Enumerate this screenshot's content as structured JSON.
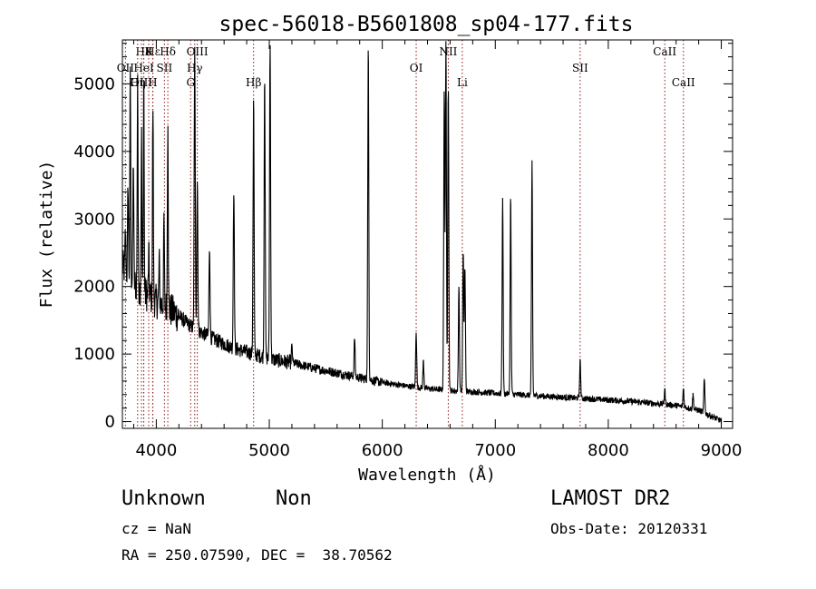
{
  "chart_data": {
    "type": "line",
    "title": "spec-56018-B5601808_sp04-177.fits",
    "xlabel": "Wavelength (Å)",
    "ylabel": "Flux (relative)",
    "xlim": [
      3700,
      9100
    ],
    "ylim": [
      -100,
      5650
    ],
    "xticks": [
      4000,
      5000,
      6000,
      7000,
      8000,
      9000
    ],
    "yticks": [
      0,
      1000,
      2000,
      3000,
      4000,
      5000
    ],
    "grid": false,
    "continuum": {
      "x": [
        3700,
        3800,
        3900,
        4000,
        4100,
        4200,
        4300,
        4400,
        4500,
        4600,
        4700,
        4800,
        4900,
        5000,
        5200,
        5400,
        5600,
        5800,
        6000,
        6200,
        6400,
        6600,
        6800,
        7000,
        7200,
        7400,
        7600,
        7800,
        8000,
        8200,
        8400,
        8600,
        8800,
        9000
      ],
      "y": [
        2300,
        2050,
        1900,
        1780,
        1680,
        1560,
        1420,
        1320,
        1230,
        1150,
        1080,
        1030,
        980,
        930,
        870,
        790,
        720,
        650,
        580,
        530,
        490,
        460,
        440,
        420,
        400,
        380,
        360,
        340,
        320,
        300,
        270,
        240,
        170,
        10
      ]
    },
    "emission_lines": [
      {
        "x": 3727,
        "y": 2800
      },
      {
        "x": 3750,
        "y": 3600
      },
      {
        "x": 3770,
        "y": 5300
      },
      {
        "x": 3797,
        "y": 3900
      },
      {
        "x": 3835,
        "y": 5200
      },
      {
        "x": 3869,
        "y": 4300
      },
      {
        "x": 3889,
        "y": 5200
      },
      {
        "x": 3933,
        "y": 2500
      },
      {
        "x": 3970,
        "y": 4700
      },
      {
        "x": 4026,
        "y": 2400
      },
      {
        "x": 4068,
        "y": 3000
      },
      {
        "x": 4102,
        "y": 4600
      },
      {
        "x": 4340,
        "y": 5500
      },
      {
        "x": 4363,
        "y": 3600
      },
      {
        "x": 4471,
        "y": 2600
      },
      {
        "x": 4686,
        "y": 3500
      },
      {
        "x": 4861,
        "y": 4800
      },
      {
        "x": 4959,
        "y": 5200
      },
      {
        "x": 5007,
        "y": 5600
      },
      {
        "x": 5200,
        "y": 1100
      },
      {
        "x": 5755,
        "y": 1250
      },
      {
        "x": 5876,
        "y": 5600
      },
      {
        "x": 6300,
        "y": 1350
      },
      {
        "x": 6364,
        "y": 900
      },
      {
        "x": 6548,
        "y": 4900
      },
      {
        "x": 6563,
        "y": 5600
      },
      {
        "x": 6584,
        "y": 5000
      },
      {
        "x": 6678,
        "y": 2050
      },
      {
        "x": 6716,
        "y": 2500
      },
      {
        "x": 6731,
        "y": 2300
      },
      {
        "x": 7065,
        "y": 3350
      },
      {
        "x": 7136,
        "y": 3350
      },
      {
        "x": 7325,
        "y": 3850
      },
      {
        "x": 7751,
        "y": 900
      },
      {
        "x": 8500,
        "y": 480
      },
      {
        "x": 8665,
        "y": 500
      },
      {
        "x": 8750,
        "y": 400
      },
      {
        "x": 8850,
        "y": 620
      }
    ],
    "line_markers": [
      {
        "label": "Hε",
        "x": 3970,
        "row": 1
      },
      {
        "label": "H8",
        "x": 3889,
        "row": 1
      },
      {
        "label": "K",
        "x": 3933,
        "row": 1
      },
      {
        "label": "Hδ",
        "x": 4102,
        "row": 1
      },
      {
        "label": "OIII",
        "x": 4363,
        "row": 1
      },
      {
        "label": "NII",
        "x": 6584,
        "row": 1
      },
      {
        "label": "CaII",
        "x": 8500,
        "row": 1
      },
      {
        "label": "OII",
        "x": 3727,
        "row": 2
      },
      {
        "label": "HeI",
        "x": 3889,
        "row": 2
      },
      {
        "label": "SII",
        "x": 4072,
        "row": 2
      },
      {
        "label": "Hγ",
        "x": 4340,
        "row": 2
      },
      {
        "label": "OI",
        "x": 6300,
        "row": 2
      },
      {
        "label": "SII",
        "x": 7751,
        "row": 2
      },
      {
        "label": "OIII",
        "x": 3869,
        "row": 3
      },
      {
        "label": "Hη",
        "x": 3835,
        "row": 3
      },
      {
        "label": "H",
        "x": 3968,
        "row": 3
      },
      {
        "label": "G",
        "x": 4304,
        "row": 3
      },
      {
        "label": "Hβ",
        "x": 4861,
        "row": 3
      },
      {
        "label": "Li",
        "x": 6708,
        "row": 3
      },
      {
        "label": "CaII",
        "x": 8665,
        "row": 3
      }
    ],
    "marker_color": "#8b1a1a"
  },
  "info": {
    "class": "Unknown",
    "subclass": "Non",
    "survey": "LAMOST DR2",
    "cz": "cz = NaN",
    "obs_date": "Obs-Date: 20120331",
    "radec": "RA = 250.07590, DEC =  38.70562"
  }
}
